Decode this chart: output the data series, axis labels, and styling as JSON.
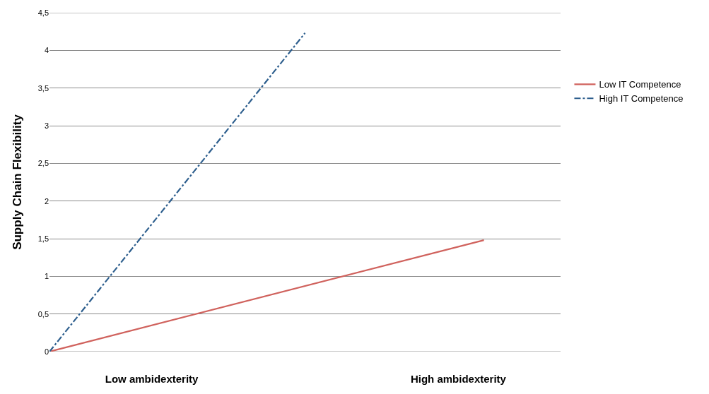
{
  "chart_data": {
    "type": "line",
    "ylabel": "Supply Chain Flexibility",
    "categories": [
      null,
      null,
      null,
      null,
      "Low ambidexterity",
      null,
      null,
      null,
      null,
      null,
      null,
      null,
      null,
      null,
      null,
      null,
      "High ambidexterity",
      null,
      null,
      null,
      null
    ],
    "ylim": [
      0,
      4.5
    ],
    "yticks": [
      0,
      {
        "value": 0.5,
        "label": "0,5"
      },
      1,
      {
        "value": 1.5,
        "label": "1,5"
      },
      2,
      {
        "value": 2.5,
        "label": "2,5"
      },
      3,
      {
        "value": 3.5,
        "label": "3,5"
      },
      4,
      {
        "value": 4.5,
        "label": "4,5"
      }
    ],
    "grid": "y",
    "legend": "right",
    "marker": "none",
    "series": [
      {
        "name": "Low IT Competence",
        "color": "#d0625d",
        "values": [
          0,
          null,
          null,
          null,
          null,
          null,
          null,
          null,
          null,
          null,
          null,
          null,
          null,
          null,
          null,
          null,
          null,
          1.48,
          null,
          null,
          null
        ],
        "line_style": "solid"
      },
      {
        "name": "High IT Competence",
        "color": "#2e5f8e",
        "values": [
          0,
          null,
          null,
          null,
          null,
          null,
          null,
          null,
          null,
          null,
          4.23,
          null,
          null,
          null,
          null,
          null,
          null,
          null,
          null,
          null,
          null
        ],
        "line_style": "dashdot"
      }
    ]
  }
}
